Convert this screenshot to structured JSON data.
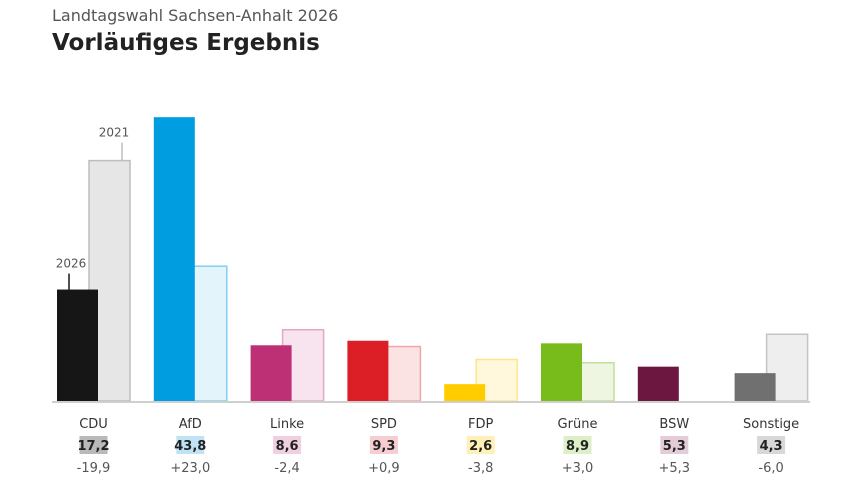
{
  "header": {
    "supertitle": "Landtagswahl Sachsen-Anhalt 2026",
    "title": "Vorläufiges Ergebnis"
  },
  "chart_data": {
    "type": "bar",
    "categories": [
      "CDU",
      "AfD",
      "Linke",
      "SPD",
      "FDP",
      "Grüne",
      "BSW",
      "Sonstige"
    ],
    "series": [
      {
        "name": "2026",
        "values": [
          17.2,
          43.8,
          8.6,
          9.3,
          2.6,
          8.9,
          5.3,
          4.3
        ]
      },
      {
        "name": "2021",
        "values": [
          37.1,
          20.8,
          11.0,
          8.4,
          6.4,
          5.9,
          0,
          10.3
        ]
      }
    ],
    "value_labels": [
      "17,2",
      "43,8",
      "8,6",
      "9,3",
      "2,6",
      "8,9",
      "5,3",
      "4,3"
    ],
    "diff_labels": [
      "-19,9",
      "+23,0",
      "-2,4",
      "+0,9",
      "-3,8",
      "+3,0",
      "+5,3",
      "-6,0"
    ],
    "colors_2026": [
      "#161616",
      "#009ee0",
      "#be3075",
      "#dc1f26",
      "#ffcc00",
      "#78bc1b",
      "#6b1740",
      "#707070"
    ],
    "colors_2021_fill": [
      "#e6e6e6",
      "#e3f4fb",
      "#f7e4ee",
      "#fbe3e4",
      "#fff8dc",
      "#eef6e2",
      "#f2e4ea",
      "#eeeeee"
    ],
    "colors_2021_stroke": [
      "#bdbdbd",
      "#7fd0ef",
      "#e2a8c5",
      "#efa6a9",
      "#ffe58a",
      "#bfe09a",
      "#c98ba7",
      "#c4c4c4"
    ],
    "badge_colors": [
      "#b9b9b9",
      "#bfe3f5",
      "#f0cfe0",
      "#f6cdd0",
      "#fff0b8",
      "#dcefc7",
      "#e3ccd7",
      "#d8d8d8"
    ],
    "annotations": [
      "2026",
      "2021"
    ],
    "ylim": [
      0,
      45
    ],
    "grid": false,
    "legend": "none"
  }
}
